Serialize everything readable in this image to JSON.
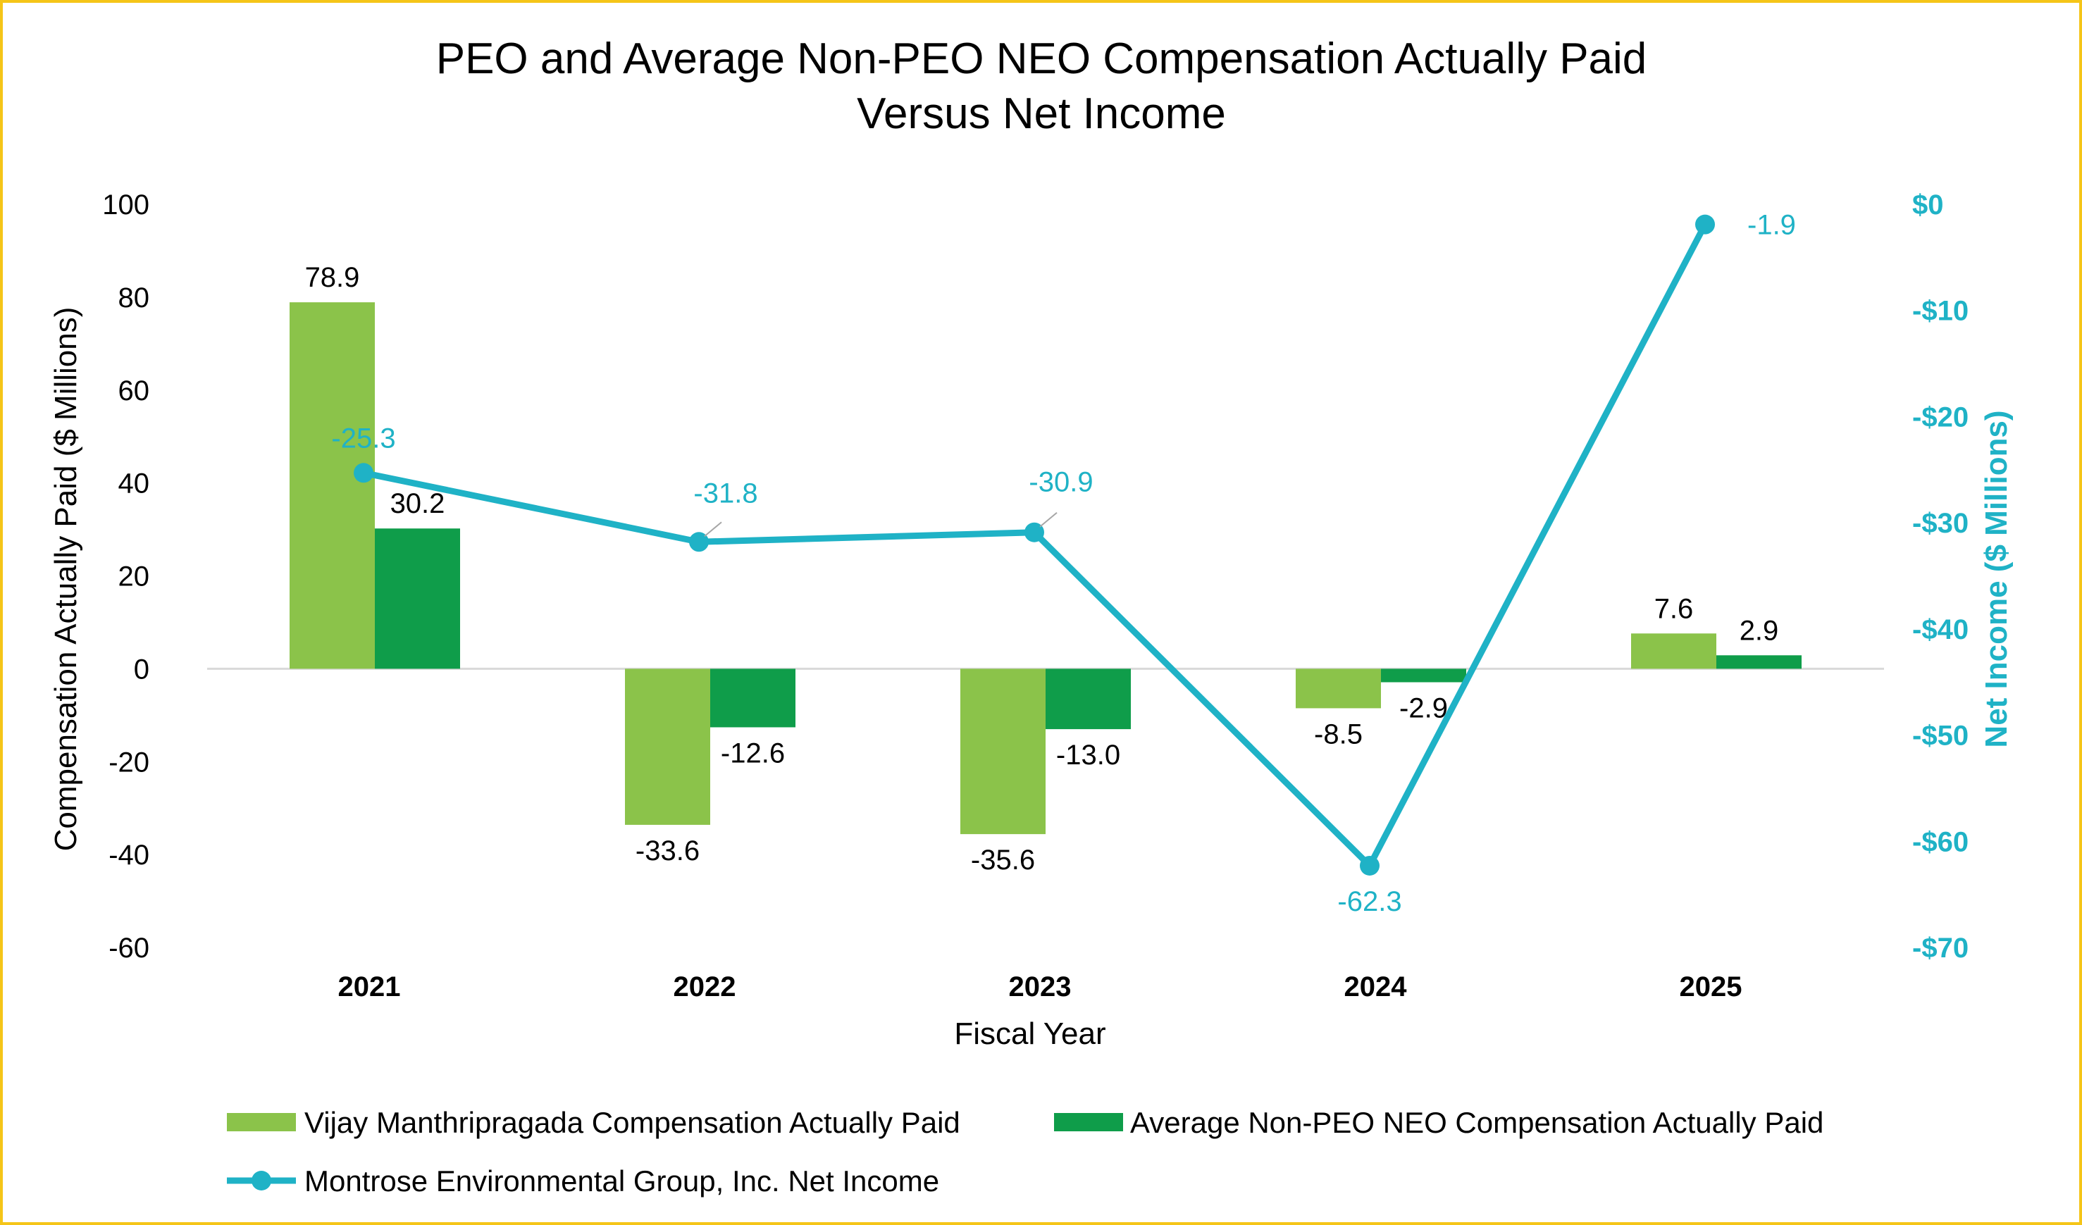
{
  "chart_data": {
    "type": "bar",
    "title_line1": "PEO and Average Non-PEO NEO Compensation Actually Paid",
    "title_line2": "Versus Net Income",
    "xlabel": "Fiscal Year",
    "ylabel": "Compensation Actually Paid ($ Millions)",
    "y2label": "Net Income ($ Millions)",
    "categories": [
      "2021",
      "2022",
      "2023",
      "2024",
      "2025"
    ],
    "ylim": [
      -60,
      100
    ],
    "yticks": [
      100,
      80,
      60,
      40,
      20,
      0,
      -20,
      -40,
      -60
    ],
    "ytick_labels": [
      "100",
      "80",
      "60",
      "40",
      "20",
      "0",
      "-20",
      "-40",
      "-60"
    ],
    "y2lim": [
      -70,
      0
    ],
    "y2ticks": [
      0,
      -10,
      -20,
      -30,
      -40,
      -50,
      -60,
      -70
    ],
    "y2tick_labels": [
      "$0",
      "-$10",
      "-$20",
      "-$30",
      "-$40",
      "-$50",
      "-$60",
      "-$70"
    ],
    "series": [
      {
        "name": "Vijay Manthripragada Compensation Actually Paid",
        "type": "bar",
        "axis": "left",
        "color": "#8bc34a",
        "values": [
          78.9,
          -33.6,
          -35.6,
          -8.5,
          7.6
        ],
        "labels": [
          "78.9",
          "-33.6",
          "-35.6",
          "-8.5",
          "7.6"
        ]
      },
      {
        "name": "Average Non-PEO NEO Compensation Actually Paid",
        "type": "bar",
        "axis": "left",
        "color": "#0f9d4a",
        "values": [
          30.2,
          -12.6,
          -13.0,
          -2.9,
          2.9
        ],
        "labels": [
          "30.2",
          "-12.6",
          "-13.0",
          "-2.9",
          "2.9"
        ]
      },
      {
        "name": "Montrose Environmental Group, Inc. Net Income",
        "type": "line",
        "axis": "right",
        "color": "#1fb2c6",
        "values": [
          -25.3,
          -31.8,
          -30.9,
          -62.3,
          -1.9
        ],
        "labels": [
          "-25.3",
          "-31.8",
          "-30.9",
          "-62.3",
          "-1.9"
        ]
      }
    ],
    "legend_position": "bottom",
    "grid": false
  },
  "colors": {
    "frame": "#f5c518",
    "right_axis": "#1fb2c6",
    "zero_line": "#d9d9d9"
  }
}
